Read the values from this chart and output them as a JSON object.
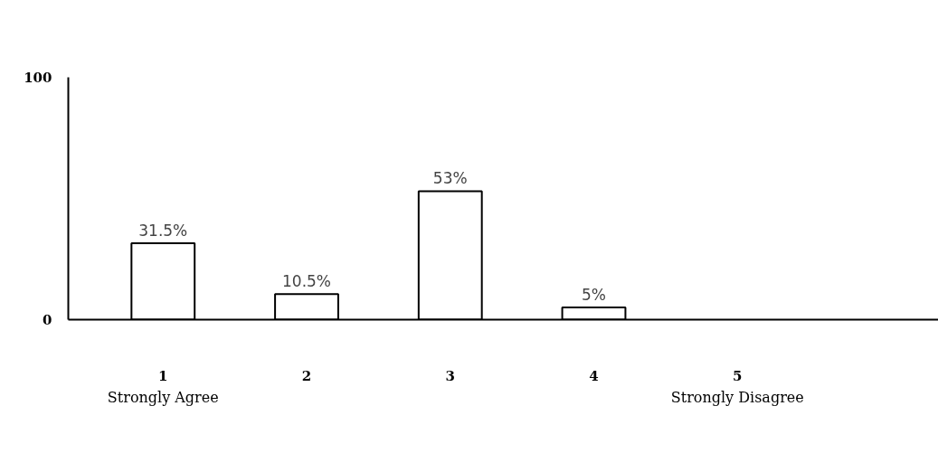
{
  "chart_data": {
    "type": "bar",
    "categories": [
      "1",
      "2",
      "3",
      "4",
      "5"
    ],
    "values": [
      31.5,
      10.5,
      53,
      5,
      null
    ],
    "value_labels": [
      "31.5%",
      "10.5%",
      "53%",
      "5%",
      null
    ],
    "color": "#ffffff",
    "ylim": [
      0,
      100
    ],
    "yticks": [
      0,
      100
    ],
    "grid": false,
    "annotations": [
      "Strongly Agree",
      "Strongly Disagree"
    ]
  }
}
